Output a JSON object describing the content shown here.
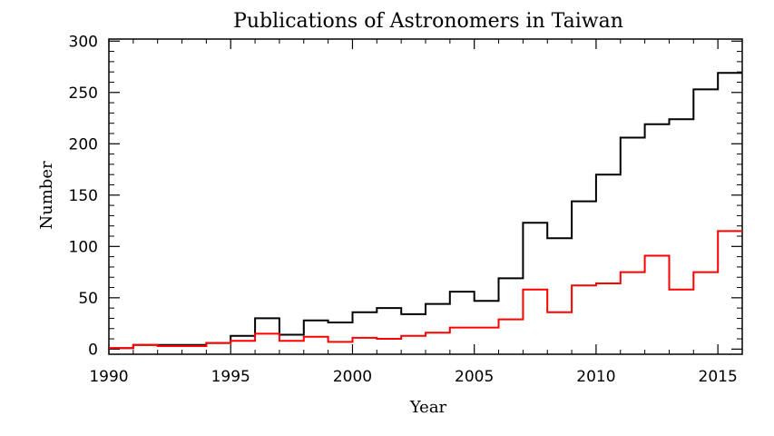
{
  "chart_data": {
    "type": "line",
    "step": true,
    "title": "Publications of Astronomers in Taiwan",
    "xlabel": "Year",
    "ylabel": "Number",
    "xlim": [
      1990,
      2016
    ],
    "ylim": [
      -5,
      302
    ],
    "xticks": [
      1990,
      1995,
      2000,
      2005,
      2010,
      2015
    ],
    "yticks": [
      0,
      50,
      100,
      150,
      200,
      250,
      300
    ],
    "x": [
      1990,
      1991,
      1992,
      1993,
      1994,
      1995,
      1996,
      1997,
      1998,
      1999,
      2000,
      2001,
      2002,
      2003,
      2004,
      2005,
      2006,
      2007,
      2008,
      2009,
      2010,
      2011,
      2012,
      2013,
      2014,
      2015
    ],
    "series": [
      {
        "color": "#000000",
        "values": [
          1,
          4,
          4,
          4,
          6,
          13,
          30,
          14,
          28,
          26,
          36,
          40,
          34,
          44,
          56,
          47,
          69,
          123,
          108,
          144,
          170,
          206,
          219,
          224,
          253,
          269
        ]
      },
      {
        "color": "#ff0000",
        "values": [
          1,
          4,
          3,
          3,
          6,
          8,
          15,
          8,
          12,
          7,
          11,
          10,
          13,
          16,
          21,
          21,
          29,
          58,
          36,
          62,
          64,
          75,
          91,
          58,
          75,
          115
        ]
      }
    ],
    "grid": false,
    "legend": "none"
  }
}
